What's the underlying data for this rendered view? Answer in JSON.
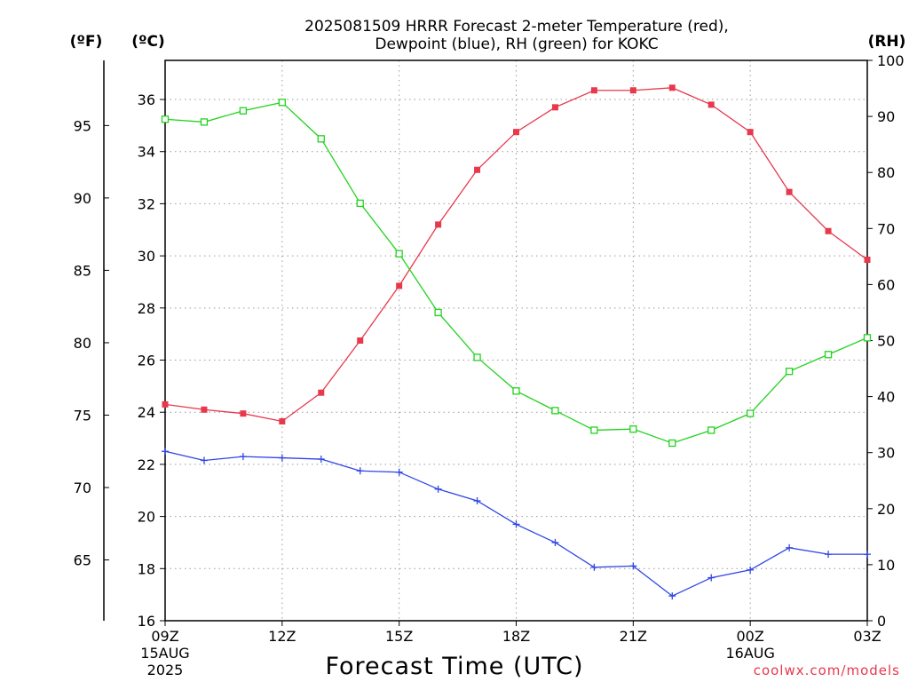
{
  "chart_data": {
    "type": "line",
    "title_line1": "2025081509 HRRR Forecast 2-meter Temperature (red),",
    "title_line2": "Dewpoint (blue), RH (green) for KOKC",
    "xlabel": "Forecast Time (UTC)",
    "unit_labels": {
      "fahrenheit": "(ºF)",
      "celsius": "(ºC)",
      "rh": "(RH)"
    },
    "credit": "coolwx.com/models",
    "x_ticks": [
      {
        "hour": 0,
        "label": "09Z",
        "sub1": "15AUG",
        "sub2": "2025"
      },
      {
        "hour": 3,
        "label": "12Z",
        "sub1": "",
        "sub2": ""
      },
      {
        "hour": 6,
        "label": "15Z",
        "sub1": "",
        "sub2": ""
      },
      {
        "hour": 9,
        "label": "18Z",
        "sub1": "",
        "sub2": ""
      },
      {
        "hour": 12,
        "label": "21Z",
        "sub1": "",
        "sub2": ""
      },
      {
        "hour": 15,
        "label": "00Z",
        "sub1": "16AUG",
        "sub2": ""
      },
      {
        "hour": 18,
        "label": "03Z",
        "sub1": "",
        "sub2": ""
      }
    ],
    "x_range": [
      0,
      18
    ],
    "ylim_celsius": [
      16,
      37.5
    ],
    "ylim_rh": [
      0,
      100
    ],
    "y_ticks_celsius": [
      16,
      18,
      20,
      22,
      24,
      26,
      28,
      30,
      32,
      34,
      36
    ],
    "y_ticks_fahrenheit": [
      65,
      70,
      75,
      80,
      85,
      90,
      95
    ],
    "y_ticks_rh": [
      0,
      10,
      20,
      30,
      40,
      50,
      60,
      70,
      80,
      90,
      100
    ],
    "grid": true,
    "x": [
      0,
      1,
      2,
      3,
      4,
      5,
      6,
      7,
      8,
      9,
      10,
      11,
      12,
      13,
      14,
      15,
      16,
      17,
      18
    ],
    "series": [
      {
        "name": "Temperature",
        "axis": "celsius",
        "color": "#e8384b",
        "marker": "filled-square",
        "values": [
          24.3,
          24.1,
          23.95,
          23.65,
          24.75,
          26.75,
          28.85,
          31.2,
          33.3,
          34.75,
          35.7,
          36.35,
          36.35,
          36.45,
          35.8,
          34.75,
          32.45,
          30.95,
          29.85
        ]
      },
      {
        "name": "Dewpoint",
        "axis": "celsius",
        "color": "#2f45e6",
        "marker": "plus",
        "values": [
          22.5,
          22.15,
          22.3,
          22.25,
          22.2,
          21.75,
          21.7,
          21.05,
          20.6,
          19.7,
          19.0,
          18.05,
          18.1,
          16.95,
          17.65,
          17.95,
          18.8,
          18.55,
          18.55
        ]
      },
      {
        "name": "RH",
        "axis": "rh",
        "color": "#22d31f",
        "marker": "open-square",
        "values": [
          89.5,
          89.0,
          91.0,
          92.5,
          86.0,
          74.5,
          65.5,
          55.0,
          47.0,
          41.0,
          37.5,
          34.0,
          34.2,
          31.7,
          34.0,
          37.0,
          44.5,
          47.5,
          50.5
        ]
      }
    ]
  }
}
